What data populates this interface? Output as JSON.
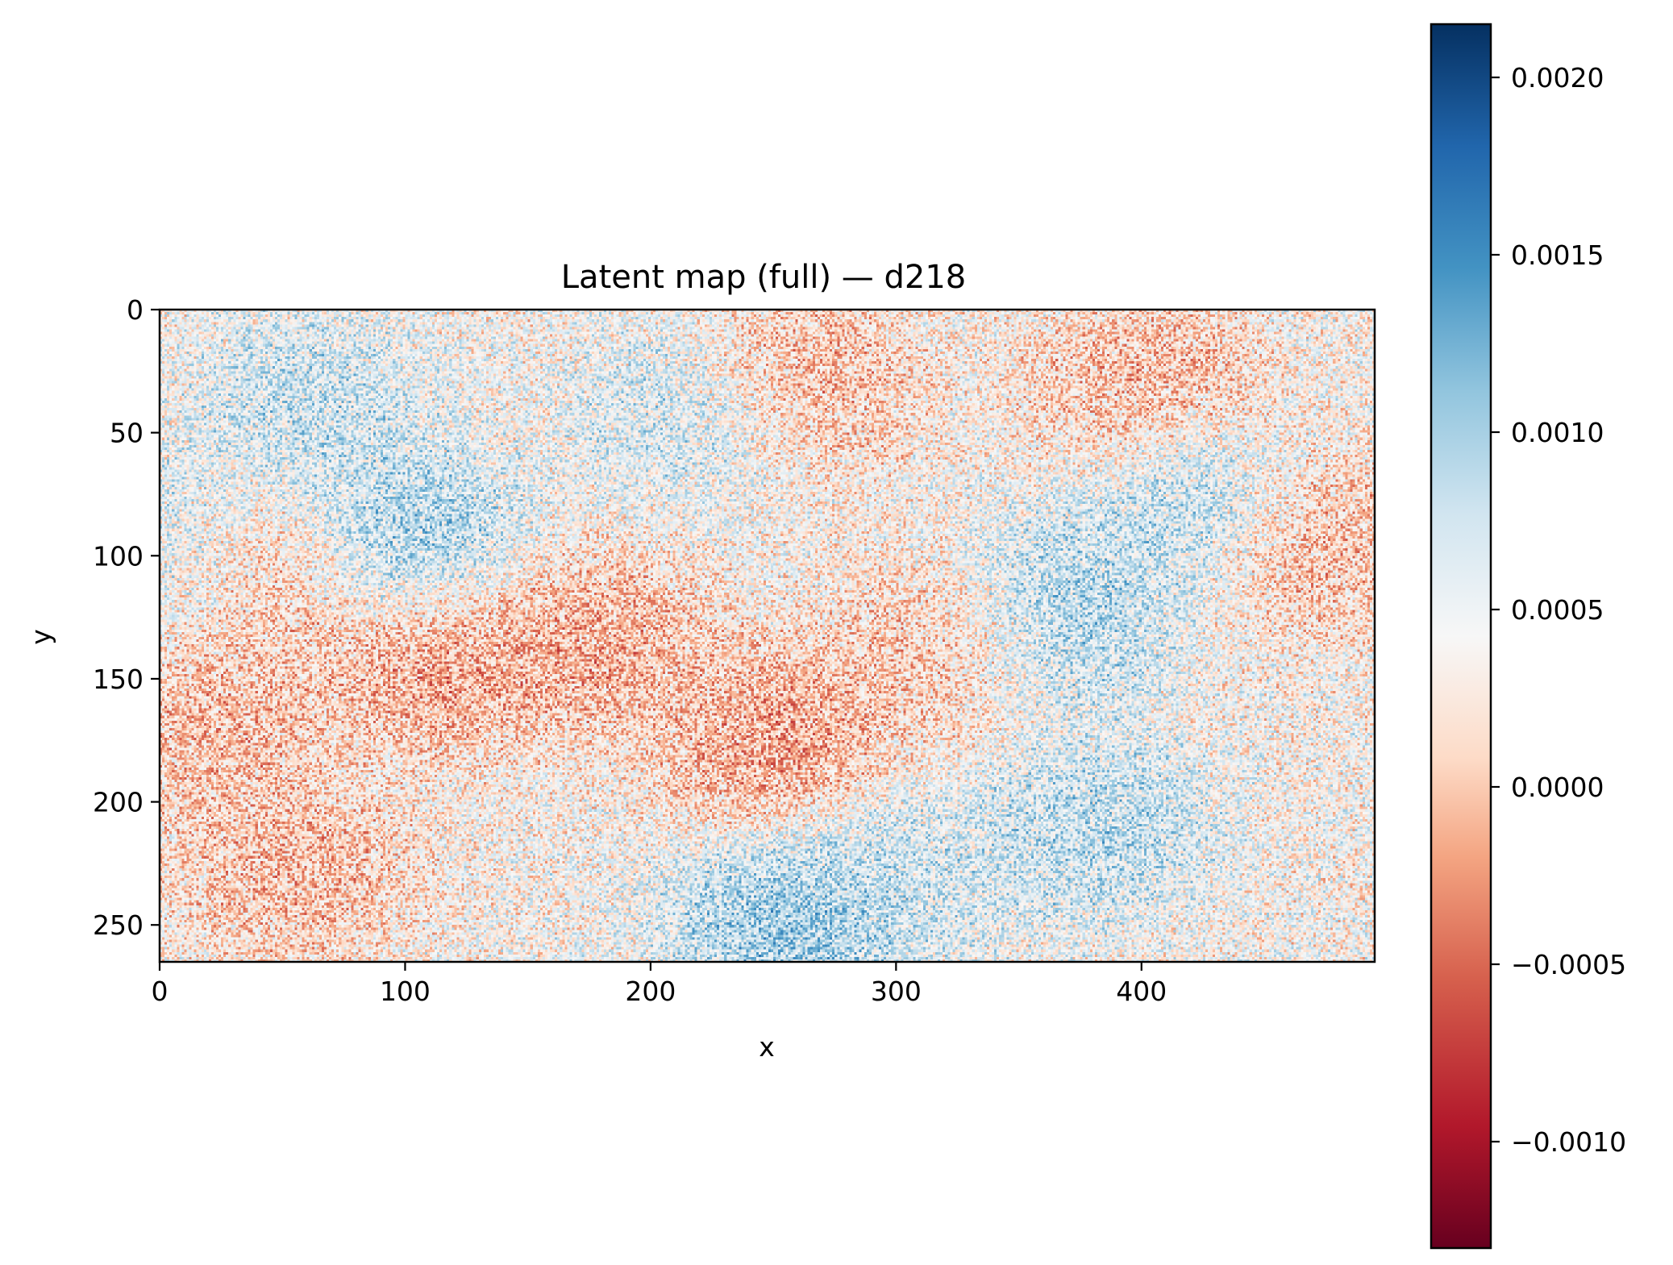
{
  "chart_data": {
    "type": "heatmap",
    "title": "Latent map (full) — d218",
    "xlabel": "x",
    "ylabel": "y",
    "xlim": [
      0,
      495
    ],
    "ylim": [
      265,
      0
    ],
    "x_ticks": [
      0,
      100,
      200,
      300,
      400
    ],
    "y_ticks": [
      0,
      50,
      100,
      150,
      200,
      250
    ],
    "colormap": "RdBu",
    "colorbar": {
      "min": -0.0013,
      "max": 0.00215,
      "ticks": [
        -0.001,
        -0.0005,
        0.0,
        0.0005,
        0.001,
        0.0015,
        0.002
      ],
      "tick_labels": [
        "−0.0010",
        "−0.0005",
        "0.0000",
        "0.0005",
        "0.0010",
        "0.0015",
        "0.0020"
      ]
    },
    "colors": {
      "low": "#67001f",
      "mid": "#f7f7f7",
      "high": "#053061"
    },
    "patches": [
      {
        "x": 40,
        "y": 110,
        "value": -0.0003
      },
      {
        "x": 112,
        "y": 142,
        "value": -0.0004
      },
      {
        "x": 175,
        "y": 135,
        "value": -0.0003
      },
      {
        "x": 258,
        "y": 28,
        "value": -0.0003
      },
      {
        "x": 250,
        "y": 175,
        "value": -0.0004
      },
      {
        "x": 320,
        "y": 135,
        "value": -0.0002
      },
      {
        "x": 400,
        "y": 30,
        "value": -0.0002
      },
      {
        "x": 470,
        "y": 95,
        "value": -0.0002
      },
      {
        "x": 55,
        "y": 228,
        "value": -0.0002
      },
      {
        "x": 20,
        "y": 170,
        "value": -0.0002
      },
      {
        "x": 100,
        "y": 95,
        "value": 0.0012
      },
      {
        "x": 60,
        "y": 40,
        "value": 0.0009
      },
      {
        "x": 220,
        "y": 40,
        "value": 0.0009
      },
      {
        "x": 360,
        "y": 125,
        "value": 0.0012
      },
      {
        "x": 255,
        "y": 250,
        "value": 0.0013
      },
      {
        "x": 420,
        "y": 80,
        "value": 0.001
      },
      {
        "x": 380,
        "y": 210,
        "value": 0.001
      },
      {
        "x": 10,
        "y": 100,
        "value": 0.0009
      },
      {
        "x": 300,
        "y": 230,
        "value": 0.0008
      }
    ]
  }
}
